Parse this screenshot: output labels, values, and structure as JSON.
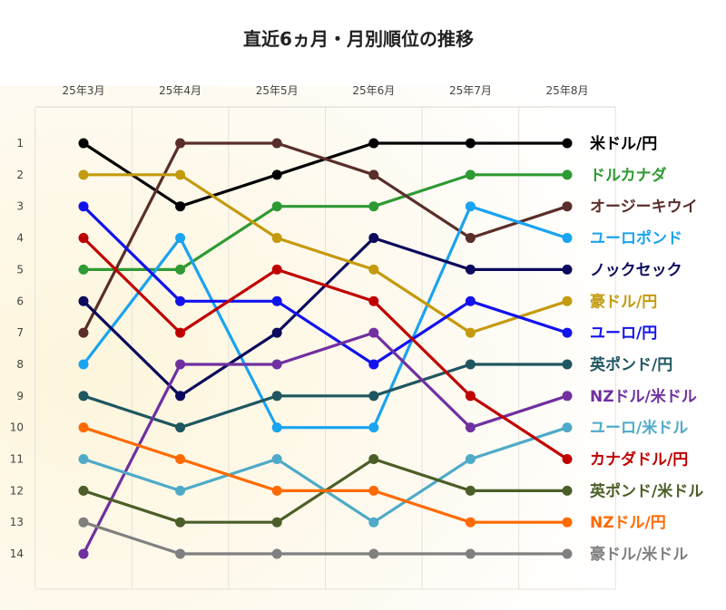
{
  "chart_data": {
    "type": "line",
    "title": "直近6ヵ月・月別順位の推移",
    "xlabel": "",
    "ylabel": "",
    "x": [
      "25年3月",
      "25年4月",
      "25年5月",
      "25年6月",
      "25年7月",
      "25年8月"
    ],
    "yticks": [
      "1",
      "2",
      "3",
      "4",
      "5",
      "6",
      "7",
      "8",
      "9",
      "10",
      "11",
      "12",
      "13",
      "14"
    ],
    "ylim": [
      1,
      14
    ],
    "y_inverted": true,
    "grid": "vertical",
    "legend": "right (end of lines)",
    "series": [
      {
        "name": "米ドル/円",
        "color": "#000000",
        "values": [
          1,
          3,
          2,
          1,
          1,
          1
        ]
      },
      {
        "name": "ドルカナダ",
        "color": "#2e9a33",
        "values": [
          5,
          5,
          3,
          3,
          2,
          2
        ]
      },
      {
        "name": "オージーキウイ",
        "color": "#5a2e2a",
        "values": [
          7,
          1,
          1,
          2,
          4,
          3
        ]
      },
      {
        "name": "ユーロポンド",
        "color": "#1aa3f0",
        "values": [
          8,
          4,
          10,
          10,
          3,
          4
        ]
      },
      {
        "name": "ノックセック",
        "color": "#0b0a5c",
        "values": [
          6,
          9,
          7,
          4,
          5,
          5
        ]
      },
      {
        "name": "豪ドル/円",
        "color": "#c49a0e",
        "values": [
          2,
          2,
          4,
          5,
          7,
          6
        ]
      },
      {
        "name": "ユーロ/円",
        "color": "#1212ee",
        "values": [
          3,
          6,
          6,
          8,
          6,
          7
        ]
      },
      {
        "name": "英ポンド/円",
        "color": "#1f5660",
        "values": [
          9,
          10,
          9,
          9,
          8,
          8
        ]
      },
      {
        "name": "NZドル/米ドル",
        "color": "#7030a0",
        "values": [
          14,
          8,
          8,
          7,
          10,
          9
        ]
      },
      {
        "name": "ユーロ/米ドル",
        "color": "#4eaac8",
        "values": [
          11,
          12,
          11,
          13,
          11,
          10
        ]
      },
      {
        "name": "カナダドル/円",
        "color": "#c00000",
        "values": [
          4,
          7,
          5,
          6,
          9,
          11
        ]
      },
      {
        "name": "英ポンド/米ドル",
        "color": "#4b5e27",
        "values": [
          12,
          13,
          13,
          11,
          12,
          12
        ]
      },
      {
        "name": "NZドル/円",
        "color": "#ff6a00",
        "values": [
          10,
          11,
          12,
          12,
          13,
          13
        ]
      },
      {
        "name": "豪ドル/米ドル",
        "color": "#808080",
        "values": [
          13,
          14,
          14,
          14,
          14,
          14
        ]
      }
    ]
  }
}
